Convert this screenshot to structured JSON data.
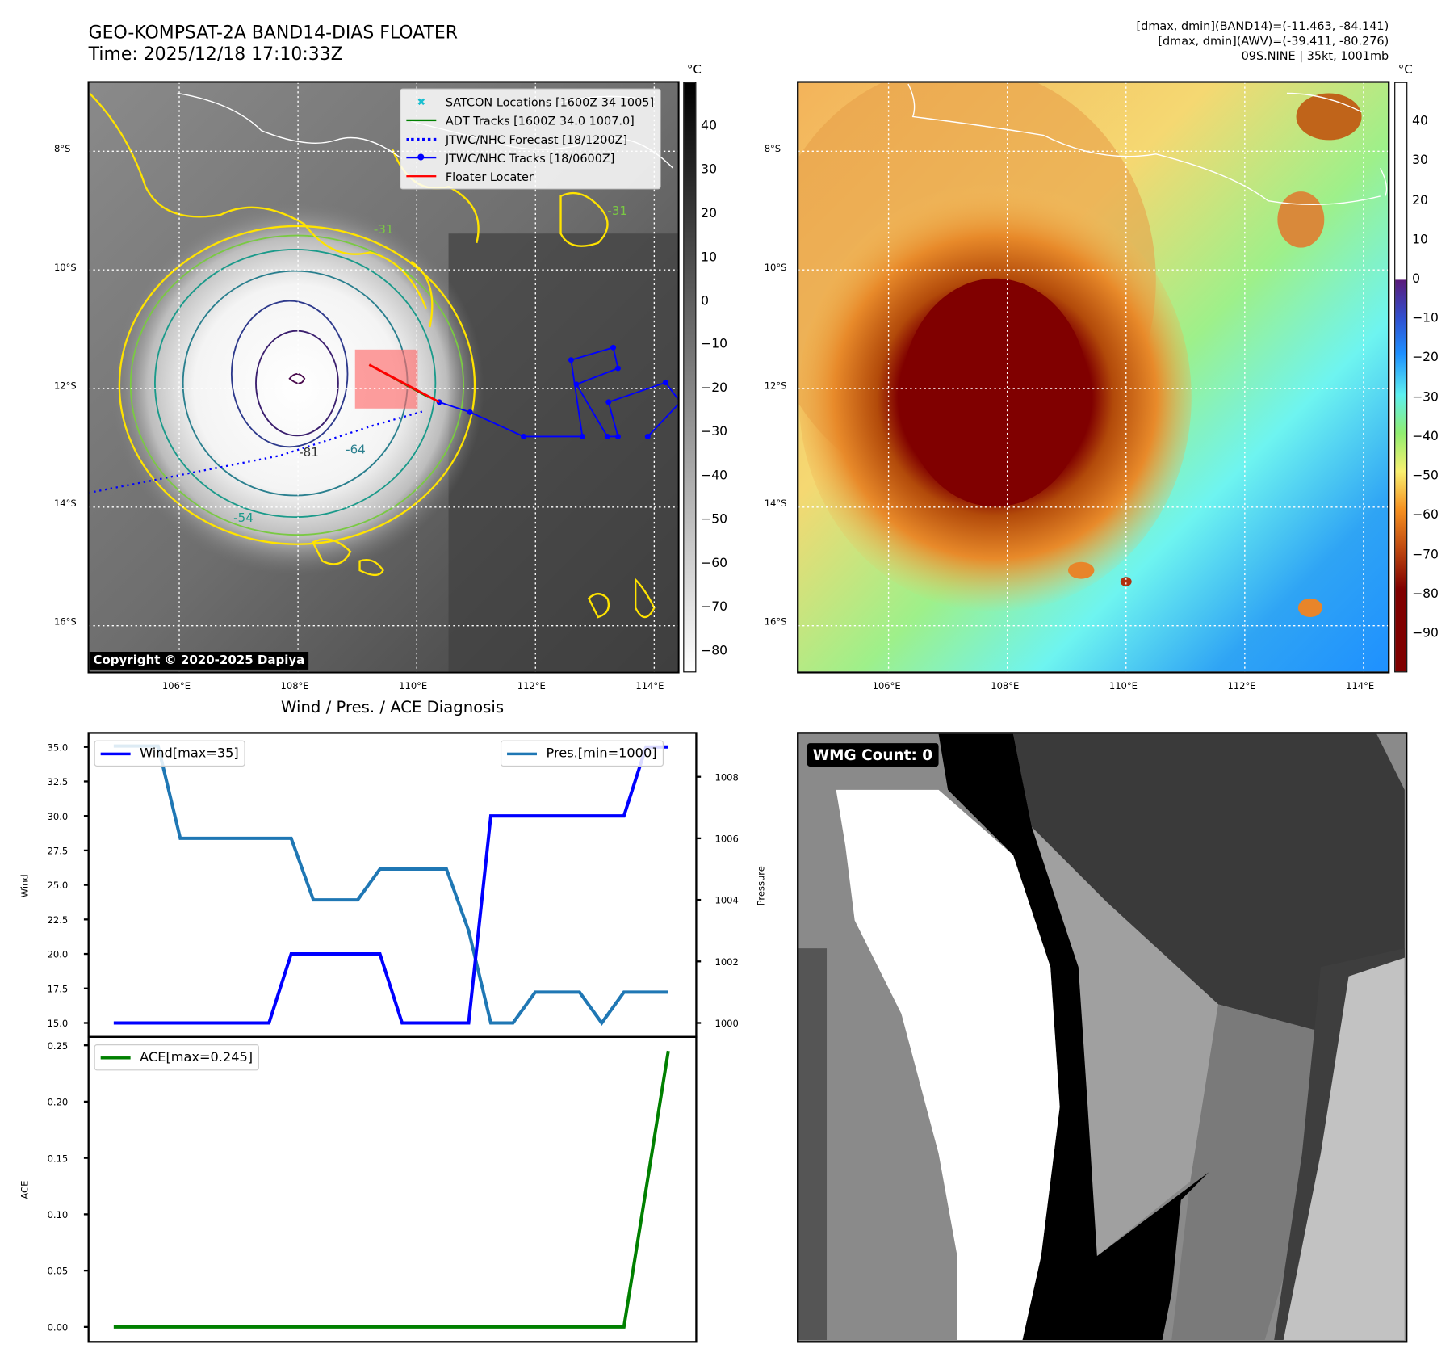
{
  "header": {
    "title_line1": "GEO-KOMPSAT-2A BAND14-DIAS FLOATER",
    "title_line2": "Time: 2025/12/18 17:10:33Z",
    "info_line1": "[dmax, dmin](BAND14)=(-11.463, -84.141)",
    "info_line2": "[dmax, dmin](AWV)=(-39.411, -80.276)",
    "info_line3": "09S.NINE | 35kt, 1001mb"
  },
  "map_axes": {
    "lon_ticks": [
      "106°E",
      "108°E",
      "110°E",
      "112°E",
      "114°E"
    ],
    "lat_ticks": [
      "8°S",
      "10°S",
      "12°S",
      "14°S",
      "16°S"
    ]
  },
  "left_map": {
    "unit": "°C",
    "colorbar_ticks": [
      "40",
      "30",
      "20",
      "10",
      "0",
      "−10",
      "−20",
      "−30",
      "−40",
      "−50",
      "−60",
      "−70",
      "−80"
    ],
    "colorbar_values": [
      40,
      30,
      20,
      10,
      0,
      -10,
      -20,
      -30,
      -40,
      -50,
      -60,
      -70,
      -80
    ],
    "colorbar_range": [
      -84.7,
      50.2
    ],
    "legend": [
      {
        "label": "SATCON Locations [1600Z 34 1005]",
        "color": "#17becf"
      },
      {
        "label": "ADT Tracks [1600Z 34.0 1007.0]",
        "color": "#008000"
      },
      {
        "label": "JTWC/NHC Forecast [18/1200Z]",
        "color": "#0000ff"
      },
      {
        "label": "JTWC/NHC Tracks [18/0600Z]",
        "color": "#0000ff"
      },
      {
        "label": "Floater Locater",
        "color": "#ff0000"
      }
    ],
    "contour_labels": [
      "-81",
      "-64",
      "-54",
      "-31",
      "-31"
    ],
    "copyright": "Copyright © 2020-2025 Dapiya",
    "jtwc_track": [
      [
        110.38,
        -12.23
      ],
      [
        110.9,
        -12.4
      ],
      [
        111.8,
        -12.81
      ],
      [
        112.79,
        -12.81
      ],
      [
        112.6,
        -11.52
      ],
      [
        113.31,
        -11.31
      ],
      [
        113.39,
        -11.66
      ],
      [
        112.69,
        -11.93
      ],
      [
        113.21,
        -12.81
      ],
      [
        113.39,
        -12.81
      ],
      [
        113.23,
        -12.23
      ],
      [
        114.19,
        -11.9
      ],
      [
        114.44,
        -12.23
      ],
      [
        113.89,
        -12.81
      ]
    ],
    "jtwc_forecast": [
      [
        104.47,
        -13.76
      ],
      [
        107.7,
        -13.13
      ],
      [
        109.28,
        -12.62
      ],
      [
        110.09,
        -12.39
      ]
    ],
    "floater_locater": [
      [
        109.2,
        -11.6
      ],
      [
        110.38,
        -12.23
      ]
    ],
    "adt_track": [
      [
        109.2,
        -11.6
      ],
      [
        110.2,
        -12.15
      ]
    ]
  },
  "right_map": {
    "unit": "°C",
    "colorbar_ticks": [
      "40",
      "30",
      "20",
      "10",
      "0",
      "−10",
      "−20",
      "−30",
      "−40",
      "−50",
      "−60",
      "−70",
      "−80",
      "−90"
    ],
    "colorbar_values": [
      40,
      30,
      20,
      10,
      0,
      -10,
      -20,
      -30,
      -40,
      -50,
      -60,
      -70,
      -80,
      -90
    ],
    "colorbar_range": [
      -99.7,
      50.2
    ]
  },
  "wmg": {
    "label": "WMG Count: 0"
  },
  "chart_data": [
    {
      "type": "line",
      "title": "Wind / Pres. / ACE Diagnosis",
      "x": [
        0,
        1,
        2,
        3,
        4,
        5,
        6,
        7,
        8,
        9,
        10,
        11,
        12,
        13,
        14,
        15,
        16,
        17,
        18,
        19,
        20,
        21,
        22,
        23,
        24,
        25
      ],
      "series": [
        {
          "name": "Wind[max=35]",
          "axis": "left",
          "color": "#0000ff",
          "values": [
            15,
            15,
            15,
            15,
            15,
            15,
            15,
            15,
            20,
            20,
            20,
            20,
            20,
            15,
            15,
            15,
            15,
            30,
            30,
            30,
            30,
            30,
            30,
            30,
            35,
            35
          ]
        },
        {
          "name": "Pres.[min=1000]",
          "axis": "right",
          "color": "#1f77b4",
          "values": [
            1009,
            1009,
            1009,
            1006,
            1006,
            1006,
            1006,
            1006,
            1006,
            1004,
            1004,
            1004,
            1005,
            1005,
            1005,
            1005,
            1003,
            1000,
            1000,
            1001,
            1001,
            1001,
            1000,
            1001,
            1001,
            1001
          ]
        }
      ],
      "ylabel": "Wind",
      "ylabel_right": "Pressure",
      "ylim": [
        14.5,
        35.5
      ],
      "ylim_right": [
        999.9,
        1009.6
      ],
      "yticks": [
        "15.0",
        "17.5",
        "20.0",
        "22.5",
        "25.0",
        "27.5",
        "30.0",
        "32.5",
        "35.0"
      ],
      "yticks_right": [
        "1000",
        "1002",
        "1004",
        "1006",
        "1008"
      ]
    },
    {
      "type": "line",
      "x": [
        0,
        1,
        2,
        3,
        4,
        5,
        6,
        7,
        8,
        9,
        10,
        11,
        12,
        13,
        14,
        15,
        16,
        17,
        18,
        19,
        20,
        21,
        22,
        23,
        25
      ],
      "series": [
        {
          "name": "ACE[max=0.245]",
          "color": "#008000",
          "values": [
            0,
            0,
            0,
            0,
            0,
            0,
            0,
            0,
            0,
            0,
            0,
            0,
            0,
            0,
            0,
            0,
            0,
            0,
            0,
            0,
            0,
            0,
            0,
            0,
            0.245
          ]
        }
      ],
      "ylabel": "ACE",
      "ylim": [
        -0.013,
        0.252
      ],
      "yticks": [
        "0.00",
        "0.05",
        "0.10",
        "0.15",
        "0.20",
        "0.25"
      ]
    }
  ]
}
